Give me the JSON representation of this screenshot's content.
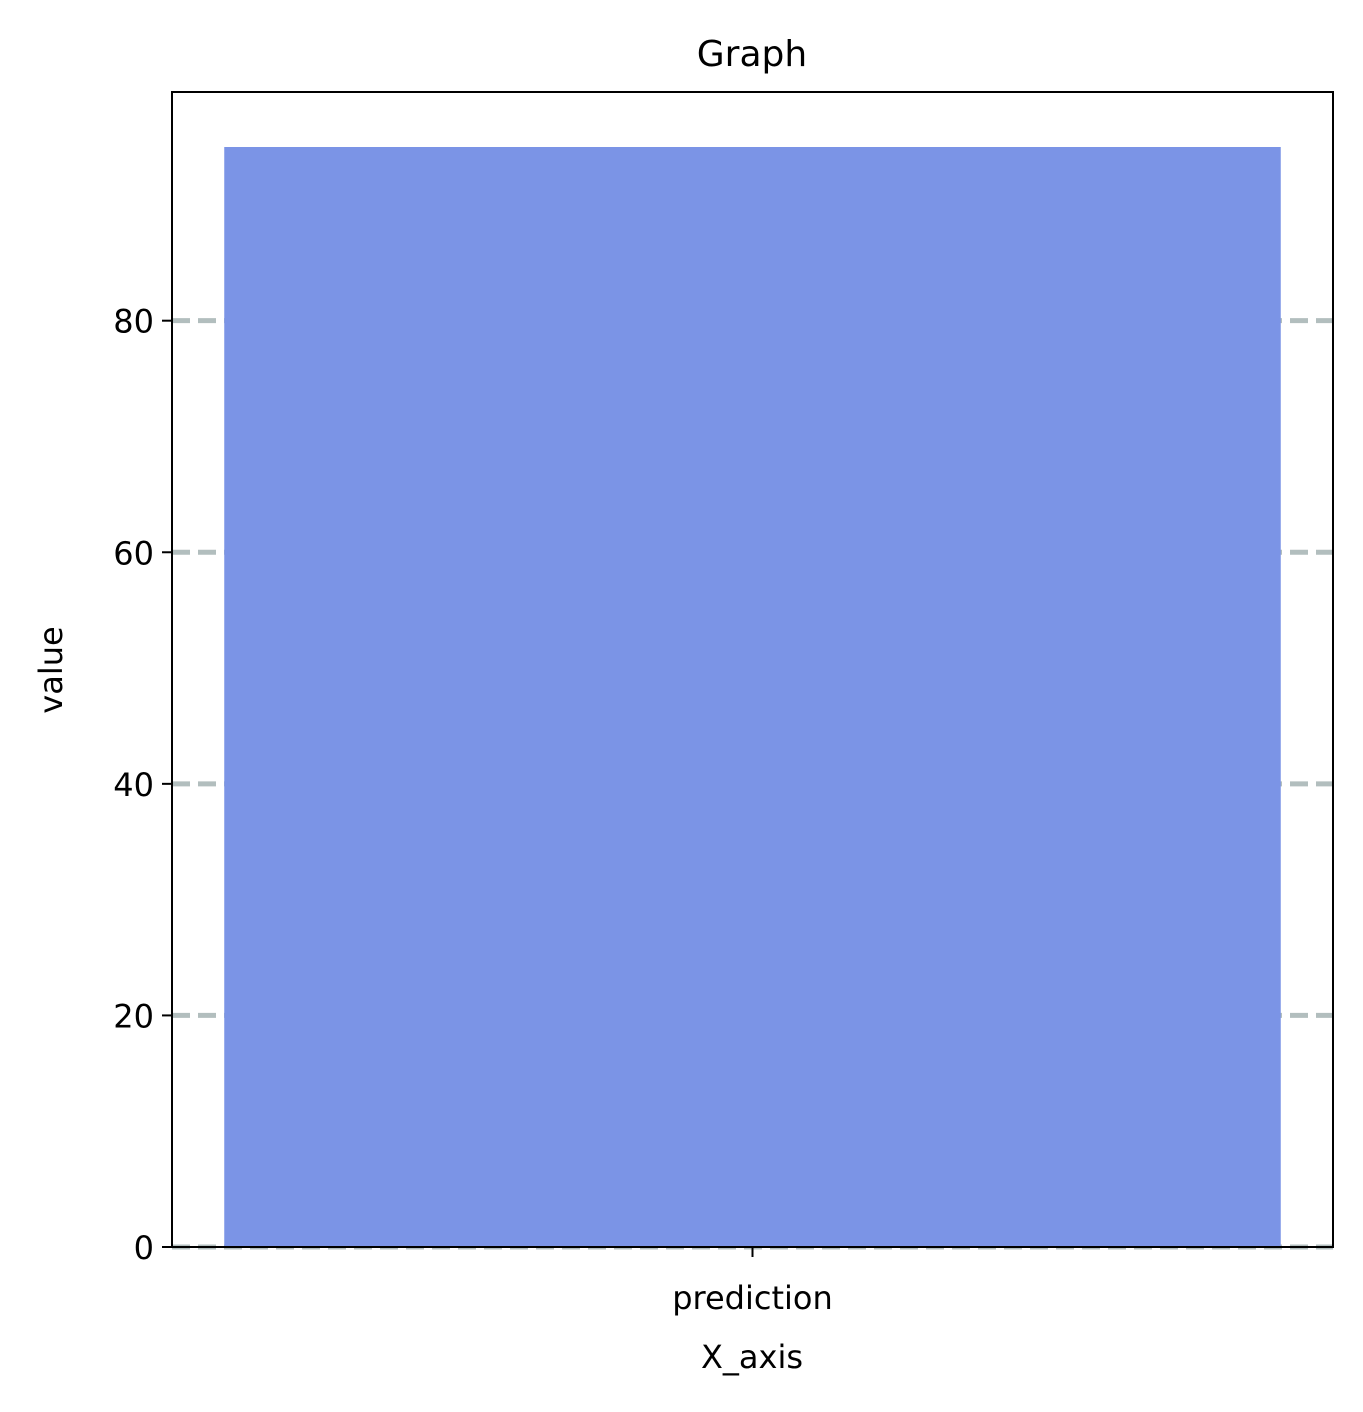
{
  "chart_data": {
    "type": "bar",
    "title": "Graph",
    "xlabel": "X_axis",
    "ylabel": "value",
    "categories": [
      "prediction"
    ],
    "values": [
      95
    ],
    "ylim": [
      0,
      99.75
    ],
    "yticks": [
      0,
      20,
      40,
      60,
      80
    ],
    "grid": "horizontal-dashed",
    "legend": "none",
    "colors": {
      "bar": "#7b94e6",
      "grid": "#b2bebe",
      "axes": "#000000"
    }
  }
}
